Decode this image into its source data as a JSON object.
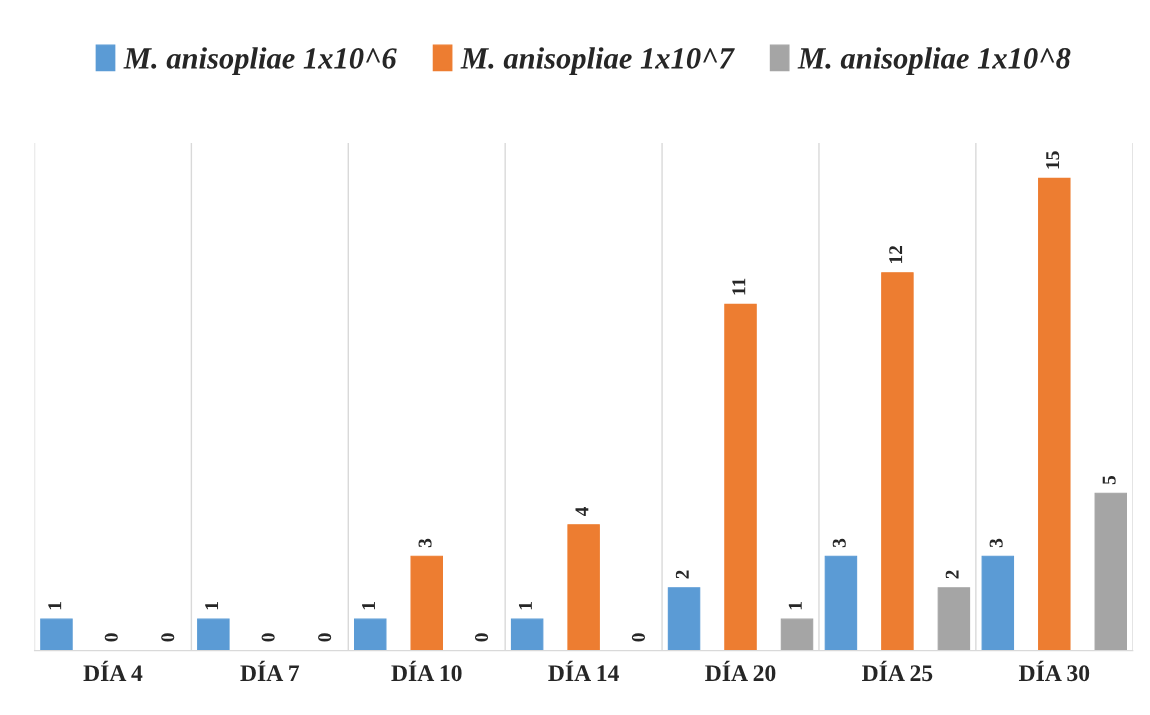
{
  "chart_data": {
    "type": "bar",
    "categories": [
      "DÍA 4",
      "DÍA 7",
      "DÍA 10",
      "DÍA 14",
      "DÍA 20",
      "DÍA 25",
      "DÍA 30"
    ],
    "series": [
      {
        "name": "M. anisopliae 1x10^6",
        "color": "#5b9bd5",
        "values": [
          1,
          1,
          1,
          1,
          2,
          3,
          3
        ]
      },
      {
        "name": "M. anisopliae 1x10^7",
        "color": "#ed7d31",
        "values": [
          0,
          0,
          3,
          4,
          11,
          12,
          15
        ]
      },
      {
        "name": "M. anisopliae 1x10^8",
        "color": "#a5a5a5",
        "values": [
          0,
          0,
          0,
          0,
          1,
          2,
          5
        ]
      }
    ],
    "data_labels": true,
    "legend": "top",
    "grid": "x"
  }
}
